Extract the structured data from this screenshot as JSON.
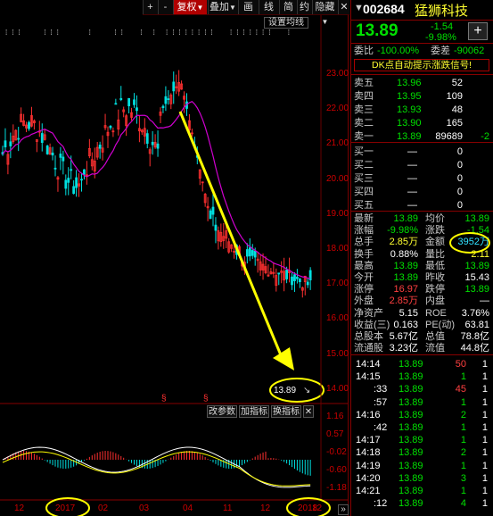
{
  "toolbar": {
    "plus": "+",
    "minus": "-",
    "fuquan": "复权",
    "fuquan_arrow": "▼",
    "diejia": "叠加",
    "diejia_arrow": "▼",
    "huamian": "画",
    "xian": "线",
    "jianyue": "简",
    "jianyue2": "约",
    "yincang": "隐藏",
    "yincang_arrow": "▼",
    "close": "✕",
    "set_mean": "设置均线"
  },
  "colors": {
    "up": "#ff3030",
    "down": "#00e0e0",
    "ma": "#d000d0",
    "arrow": "#ffff00",
    "axis": "#c00000"
  },
  "price_axis": [
    "23.00",
    "22.00",
    "21.00",
    "20.00",
    "19.00",
    "18.00",
    "17.00",
    "16.00",
    "15.00",
    "14.00"
  ],
  "macd_axis": [
    "1.16",
    "0.57",
    "-0.02",
    "-0.60",
    "-1.18"
  ],
  "x_axis": [
    "12",
    "2017",
    "02",
    "03",
    "04",
    "11",
    "12",
    "2018",
    "12"
  ],
  "last_price_label": "13.89",
  "indicator_buttons": [
    "改参数",
    "加指标",
    "换指标",
    "✕"
  ],
  "stock": {
    "code": "002684",
    "name": "猛狮科技",
    "price": "13.89",
    "change": "-1.54",
    "change_pct": "-9.98%",
    "plus_btn": "+",
    "weibi_label": "委比",
    "weibi": "-100.00%",
    "weicha_label": "委差",
    "weicha": "-90062",
    "dk_signal": "DK点自动提示涨跌信号!",
    "asks": [
      {
        "label": "卖五",
        "price": "13.96",
        "vol": "52"
      },
      {
        "label": "卖四",
        "price": "13.95",
        "vol": "109"
      },
      {
        "label": "卖三",
        "price": "13.93",
        "vol": "48"
      },
      {
        "label": "卖二",
        "price": "13.90",
        "vol": "165"
      },
      {
        "label": "卖一",
        "price": "13.89",
        "vol": "89689",
        "delta": "-2"
      }
    ],
    "bids": [
      {
        "label": "买一",
        "price": "—",
        "vol": "0"
      },
      {
        "label": "买二",
        "price": "—",
        "vol": "0"
      },
      {
        "label": "买三",
        "price": "—",
        "vol": "0"
      },
      {
        "label": "买四",
        "price": "—",
        "vol": "0"
      },
      {
        "label": "买五",
        "price": "—",
        "vol": "0"
      }
    ],
    "stats": [
      {
        "l1": "最新",
        "v1": "13.89",
        "l2": "均价",
        "v2": "13.89"
      },
      {
        "l1": "涨幅",
        "v1": "-9.98%",
        "l2": "涨跌",
        "v2": "-1.54"
      },
      {
        "l1": "总手",
        "v1": "2.85万",
        "l2": "金额",
        "v2": "3952万"
      },
      {
        "l1": "换手",
        "v1": "0.88%",
        "l2": "量比",
        "v2": "2.11"
      },
      {
        "l1": "最高",
        "v1": "13.89",
        "l2": "最低",
        "v2": "13.89"
      },
      {
        "l1": "今开",
        "v1": "13.89",
        "l2": "昨收",
        "v2": "15.43"
      },
      {
        "l1": "涨停",
        "v1": "16.97",
        "l2": "跌停",
        "v2": "13.89"
      },
      {
        "l1": "外盘",
        "v1": "2.85万",
        "l2": "内盘",
        "v2": "—"
      },
      {
        "l1": "净资产",
        "v1": "5.15",
        "l2": "ROE",
        "v2": "3.76%"
      },
      {
        "l1": "收益(三)",
        "v1": "0.163",
        "l2": "PE(动)",
        "v2": "63.81"
      },
      {
        "l1": "总股本",
        "v1": "5.67亿",
        "l2": "总值",
        "v2": "78.8亿"
      },
      {
        "l1": "流通股",
        "v1": "3.23亿",
        "l2": "流值",
        "v2": "44.8亿"
      }
    ],
    "ticks": [
      {
        "time": "14:14",
        "price": "13.89",
        "vol": "50",
        "n": "1"
      },
      {
        "time": "14:15",
        "price": "13.89",
        "vol": "1",
        "n": "1"
      },
      {
        "time": ":33",
        "price": "13.89",
        "vol": "45",
        "n": "1"
      },
      {
        "time": ":57",
        "price": "13.89",
        "vol": "1",
        "n": "1"
      },
      {
        "time": "14:16",
        "price": "13.89",
        "vol": "2",
        "n": "1"
      },
      {
        "time": ":42",
        "price": "13.89",
        "vol": "1",
        "n": "1"
      },
      {
        "time": "14:17",
        "price": "13.89",
        "vol": "1",
        "n": "1"
      },
      {
        "time": "14:18",
        "price": "13.89",
        "vol": "2",
        "n": "1"
      },
      {
        "time": "14:19",
        "price": "13.89",
        "vol": "1",
        "n": "1"
      },
      {
        "time": "14:20",
        "price": "13.89",
        "vol": "3",
        "n": "1"
      },
      {
        "time": "14:21",
        "price": "13.89",
        "vol": "1",
        "n": "1"
      },
      {
        "time": ":12",
        "price": "13.89",
        "vol": "4",
        "n": "1"
      }
    ]
  }
}
